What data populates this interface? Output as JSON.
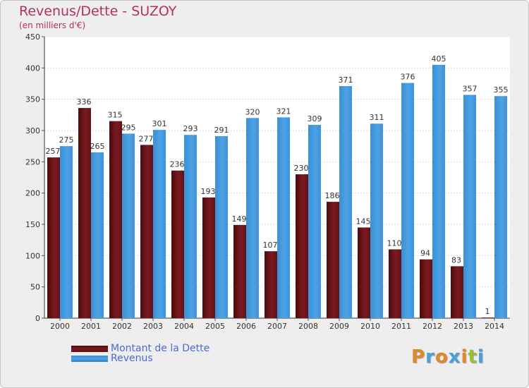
{
  "header": {
    "title": "Revenus/Dette - SUZOY",
    "subtitle": "(en milliers d'€)"
  },
  "colors": {
    "dette": "#7a1a1f",
    "revenus": "#4da3e6",
    "title": "#b5305f",
    "legend_text": "#4a69d6"
  },
  "legend": {
    "dette_label": "Montant de la Dette",
    "revenus_label": "Revenus"
  },
  "logo": {
    "text": "Proxiti",
    "letter_colors": [
      "#e0892a",
      "#4aa0d8",
      "#e0892a",
      "#4aa0d8",
      "#e0892a",
      "#9bbf2f",
      "#4aa0d8"
    ]
  },
  "chart_data": {
    "type": "bar",
    "title": "Revenus/Dette - SUZOY",
    "subtitle": "(en milliers d'€)",
    "categories": [
      "2000",
      "2001",
      "2002",
      "2003",
      "2004",
      "2005",
      "2006",
      "2007",
      "2008",
      "2009",
      "2010",
      "2011",
      "2012",
      "2013",
      "2014"
    ],
    "series": [
      {
        "name": "Montant de la Dette",
        "values": [
          257,
          336,
          315,
          277,
          236,
          193,
          149,
          107,
          230,
          186,
          145,
          110,
          94,
          83,
          1
        ]
      },
      {
        "name": "Revenus",
        "values": [
          275,
          265,
          295,
          301,
          293,
          291,
          320,
          321,
          309,
          371,
          311,
          376,
          405,
          357,
          355
        ]
      }
    ],
    "ylim": [
      0,
      450
    ],
    "yticks": [
      0,
      50,
      100,
      150,
      200,
      250,
      300,
      350,
      400,
      450
    ],
    "grid": true,
    "legend_position": "bottom-left"
  }
}
